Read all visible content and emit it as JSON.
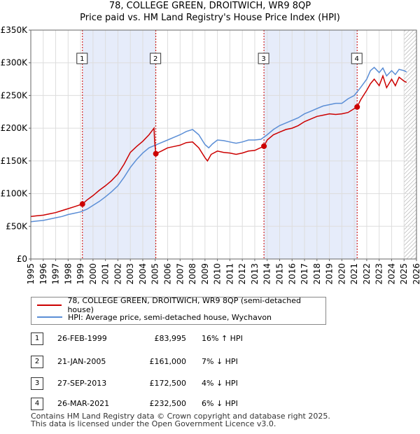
{
  "title_line1": "78, COLLEGE GREEN, DROITWICH, WR9 8QP",
  "title_line2": "Price paid vs. HM Land Registry's House Price Index (HPI)",
  "colors": {
    "property_line": "#cc0000",
    "hpi_line": "#5b8ed6",
    "shade": "#e6ecfa",
    "grid": "#dddddd",
    "marker_line": "#cc0000",
    "hatch": "#999999"
  },
  "chart_data": {
    "type": "line",
    "xlim": [
      1995,
      2026
    ],
    "ylim": [
      0,
      350000
    ],
    "x_ticks": [
      1995,
      1996,
      1997,
      1998,
      1999,
      2000,
      2001,
      2002,
      2003,
      2004,
      2005,
      2006,
      2007,
      2008,
      2009,
      2010,
      2011,
      2012,
      2013,
      2014,
      2015,
      2016,
      2017,
      2018,
      2019,
      2020,
      2021,
      2022,
      2023,
      2024,
      2025,
      2026
    ],
    "y_ticks": [
      {
        "value": 0,
        "label": "£0"
      },
      {
        "value": 50000,
        "label": "£50K"
      },
      {
        "value": 100000,
        "label": "£100K"
      },
      {
        "value": 150000,
        "label": "£150K"
      },
      {
        "value": 200000,
        "label": "£200K"
      },
      {
        "value": 250000,
        "label": "£250K"
      },
      {
        "value": 300000,
        "label": "£300K"
      },
      {
        "value": 350000,
        "label": "£350K"
      }
    ],
    "shaded_periods": [
      [
        1999.15,
        2005.05
      ],
      [
        2013.74,
        2021.23
      ]
    ],
    "hatched_from": 2025.0,
    "series": [
      {
        "name": "78, COLLEGE GREEN, DROITWICH, WR9 8QP (semi-detached house)",
        "color": "#cc0000",
        "x": [
          1995.0,
          1995.5,
          1996.0,
          1996.5,
          1997.0,
          1997.5,
          1998.0,
          1998.5,
          1999.15,
          1999.5,
          2000.0,
          2000.5,
          2001.0,
          2001.5,
          2002.0,
          2002.5,
          2003.0,
          2003.5,
          2004.0,
          2004.5,
          2004.9,
          2004.95,
          2005.05,
          2005.5,
          2006.0,
          2006.5,
          2007.0,
          2007.5,
          2008.0,
          2008.5,
          2009.0,
          2009.2,
          2009.5,
          2010.0,
          2010.5,
          2011.0,
          2011.5,
          2012.0,
          2012.5,
          2013.0,
          2013.74,
          2014.0,
          2014.5,
          2015.0,
          2015.5,
          2016.0,
          2016.5,
          2017.0,
          2017.5,
          2018.0,
          2018.5,
          2019.0,
          2019.5,
          2020.0,
          2020.5,
          2021.0,
          2021.23,
          2021.5,
          2022.0,
          2022.3,
          2022.6,
          2023.0,
          2023.3,
          2023.6,
          2024.0,
          2024.3,
          2024.6,
          2025.0,
          2025.2
        ],
        "y": [
          65000,
          66000,
          67000,
          69000,
          71000,
          74000,
          77000,
          80000,
          83995,
          90000,
          97000,
          105000,
          112000,
          120000,
          130000,
          145000,
          163000,
          172000,
          180000,
          190000,
          200000,
          180000,
          161000,
          165000,
          170000,
          172000,
          174000,
          178000,
          179000,
          170000,
          155000,
          150000,
          160000,
          165000,
          163000,
          162000,
          160000,
          162000,
          165000,
          166000,
          172500,
          182000,
          190000,
          194000,
          198000,
          200000,
          204000,
          210000,
          214000,
          218000,
          220000,
          222000,
          221000,
          222000,
          224000,
          230000,
          232500,
          243000,
          258000,
          268000,
          275000,
          265000,
          280000,
          262000,
          275000,
          265000,
          278000,
          272000,
          270000
        ],
        "markers": [
          [
            1999.15,
            83995
          ],
          [
            2005.05,
            161000
          ],
          [
            2013.74,
            172500
          ],
          [
            2021.23,
            232500
          ]
        ]
      },
      {
        "name": "HPI: Average price, semi-detached house, Wychavon",
        "color": "#5b8ed6",
        "x": [
          1995.0,
          1995.5,
          1996.0,
          1996.5,
          1997.0,
          1997.5,
          1998.0,
          1998.5,
          1999.0,
          1999.5,
          2000.0,
          2000.5,
          2001.0,
          2001.5,
          2002.0,
          2002.5,
          2003.0,
          2003.5,
          2004.0,
          2004.5,
          2005.0,
          2005.5,
          2006.0,
          2006.5,
          2007.0,
          2007.5,
          2008.0,
          2008.5,
          2009.0,
          2009.3,
          2009.6,
          2010.0,
          2010.5,
          2011.0,
          2011.5,
          2012.0,
          2012.5,
          2013.0,
          2013.5,
          2014.0,
          2014.5,
          2015.0,
          2015.5,
          2016.0,
          2016.5,
          2017.0,
          2017.5,
          2018.0,
          2018.5,
          2019.0,
          2019.5,
          2020.0,
          2020.5,
          2021.0,
          2021.5,
          2022.0,
          2022.3,
          2022.6,
          2023.0,
          2023.3,
          2023.6,
          2024.0,
          2024.3,
          2024.6,
          2025.0,
          2025.2
        ],
        "y": [
          57000,
          58000,
          59000,
          61000,
          63000,
          65000,
          68000,
          70000,
          72000,
          76000,
          82000,
          88000,
          95000,
          103000,
          112000,
          125000,
          140000,
          152000,
          162000,
          170000,
          174000,
          178000,
          182000,
          186000,
          190000,
          195000,
          198000,
          190000,
          175000,
          170000,
          176000,
          182000,
          181000,
          179000,
          177000,
          179000,
          182000,
          182000,
          183000,
          190000,
          198000,
          204000,
          208000,
          212000,
          216000,
          222000,
          226000,
          230000,
          234000,
          236000,
          238000,
          238000,
          245000,
          250000,
          262000,
          275000,
          288000,
          293000,
          285000,
          292000,
          280000,
          288000,
          282000,
          290000,
          288000,
          286000
        ]
      }
    ]
  },
  "legend": {
    "property": "78, COLLEGE GREEN, DROITWICH, WR9 8QP (semi-detached house)",
    "hpi": "HPI: Average price, semi-detached house, Wychavon"
  },
  "transactions": [
    {
      "num": "1",
      "date": "26-FEB-1999",
      "price": "£83,995",
      "hpi": "16% ↑ HPI"
    },
    {
      "num": "2",
      "date": "21-JAN-2005",
      "price": "£161,000",
      "hpi": "7% ↓ HPI"
    },
    {
      "num": "3",
      "date": "27-SEP-2013",
      "price": "£172,500",
      "hpi": "4% ↓ HPI"
    },
    {
      "num": "4",
      "date": "26-MAR-2021",
      "price": "£232,500",
      "hpi": "6% ↓ HPI"
    }
  ],
  "footer_line1": "Contains HM Land Registry data © Crown copyright and database right 2025.",
  "footer_line2": "This data is licensed under the Open Government Licence v3.0."
}
